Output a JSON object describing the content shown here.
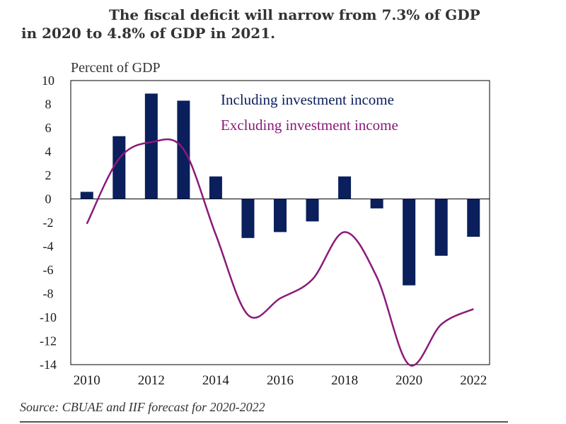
{
  "title": {
    "line1": "The fiscal deficit will narrow from 7.3% of GDP",
    "line2": "in 2020 to 4.8% of GDP in 2021."
  },
  "source": "Source:  CBUAE and IIF forecast for 2020-2022",
  "colors": {
    "bars": "#0a1f5c",
    "line": "#8b1a7a",
    "axis": "#000000"
  },
  "chart_data": {
    "type": "bar",
    "title": "The fiscal deficit will narrow from 7.3% of GDP in 2020 to 4.8% of GDP in 2021.",
    "ylabel": "Percent of GDP",
    "xlabel": "",
    "ylim": [
      -14,
      10
    ],
    "yticks": [
      "10",
      "8",
      "6",
      "4",
      "2",
      "0",
      "-2",
      "-4",
      "-6",
      "-8",
      "-10",
      "-12",
      "-14"
    ],
    "ytick_values": [
      10,
      8,
      6,
      4,
      2,
      0,
      -2,
      -4,
      -6,
      -8,
      -10,
      -12,
      -14
    ],
    "xticks": [
      "2010",
      "2012",
      "2014",
      "2016",
      "2018",
      "2020",
      "2022"
    ],
    "categories": [
      "2010",
      "2011",
      "2012",
      "2013",
      "2014",
      "2015",
      "2016",
      "2017",
      "2018",
      "2019",
      "2020",
      "2021",
      "2022"
    ],
    "series": [
      {
        "name": "Including investment income",
        "kind": "bar",
        "values": [
          0.6,
          5.3,
          8.9,
          8.3,
          1.9,
          -3.3,
          -2.8,
          -1.9,
          1.9,
          -0.8,
          -7.3,
          -4.8,
          -3.2
        ]
      },
      {
        "name": "Excluding investment income",
        "kind": "line",
        "values": [
          -2.1,
          3.4,
          4.8,
          4.2,
          -3.0,
          -9.8,
          -8.4,
          -6.8,
          -2.8,
          -6.6,
          -14.0,
          -10.6,
          -9.3
        ]
      }
    ],
    "legend": [
      "Including investment income",
      "Excluding investment income"
    ],
    "legend_position": "top-right"
  }
}
